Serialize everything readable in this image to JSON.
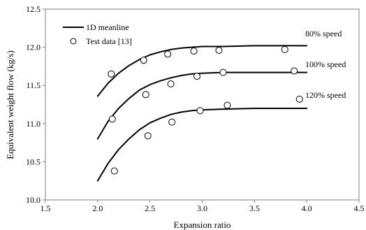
{
  "chart_data": {
    "type": "line",
    "xlabel": "Expansion ratio",
    "ylabel": "Equivalent weight flow (kg/s)",
    "xlim": [
      1.5,
      4.5
    ],
    "ylim": [
      10.0,
      12.5
    ],
    "x_ticks": [
      1.5,
      2.0,
      2.5,
      3.0,
      3.5,
      4.0,
      4.5
    ],
    "y_ticks": [
      10.0,
      10.5,
      11.0,
      11.5,
      12.0,
      12.5
    ],
    "x_tick_labels": [
      "1.5",
      "2.0",
      "2.5",
      "3.0",
      "3.5",
      "4.0",
      "4.5"
    ],
    "y_tick_labels": [
      "10.0",
      "10.5",
      "11.0",
      "11.5",
      "12.0",
      "12.5"
    ],
    "grid": false,
    "legend": {
      "position": "top-left",
      "entries": [
        "1D meanline",
        "Test data [13]"
      ]
    },
    "annotations": [
      "80% speed",
      "100% speed",
      "120% speed"
    ],
    "series": [
      {
        "label": "80% speed",
        "kind": "line",
        "x": [
          2.0,
          2.1,
          2.2,
          2.3,
          2.4,
          2.5,
          2.6,
          2.7,
          2.8,
          2.9,
          3.0,
          3.2,
          3.5,
          3.8,
          4.0
        ],
        "y": [
          11.36,
          11.53,
          11.66,
          11.76,
          11.84,
          11.9,
          11.94,
          11.97,
          11.99,
          12.0,
          12.01,
          12.01,
          12.02,
          12.02,
          12.02
        ]
      },
      {
        "label": "100% speed",
        "kind": "line",
        "x": [
          2.0,
          2.1,
          2.2,
          2.3,
          2.4,
          2.5,
          2.6,
          2.7,
          2.8,
          2.9,
          3.0,
          3.2,
          3.5,
          3.8,
          4.0
        ],
        "y": [
          10.8,
          11.03,
          11.2,
          11.33,
          11.44,
          11.51,
          11.56,
          11.6,
          11.63,
          11.65,
          11.66,
          11.67,
          11.67,
          11.67,
          11.67
        ]
      },
      {
        "label": "120% speed",
        "kind": "line",
        "x": [
          2.0,
          2.1,
          2.2,
          2.3,
          2.4,
          2.5,
          2.6,
          2.7,
          2.8,
          2.9,
          3.0,
          3.2,
          3.5,
          3.8,
          4.0
        ],
        "y": [
          10.25,
          10.48,
          10.66,
          10.8,
          10.92,
          11.01,
          11.07,
          11.12,
          11.15,
          11.17,
          11.18,
          11.19,
          11.2,
          11.2,
          11.2
        ]
      },
      {
        "label": "Test data [13] — 80% speed",
        "kind": "scatter",
        "x": [
          2.13,
          2.44,
          2.67,
          2.92,
          3.16,
          3.79
        ],
        "y": [
          11.65,
          11.83,
          11.91,
          11.95,
          11.96,
          11.97
        ]
      },
      {
        "label": "Test data [13] — 100% speed",
        "kind": "scatter",
        "x": [
          2.14,
          2.46,
          2.7,
          2.95,
          3.2,
          3.88
        ],
        "y": [
          11.06,
          11.38,
          11.52,
          11.62,
          11.67,
          11.69
        ]
      },
      {
        "label": "Test data [13] — 120% speed",
        "kind": "scatter",
        "x": [
          2.16,
          2.48,
          2.71,
          2.98,
          3.24,
          3.93
        ],
        "y": [
          10.38,
          10.84,
          11.02,
          11.17,
          11.24,
          11.32
        ]
      }
    ]
  }
}
